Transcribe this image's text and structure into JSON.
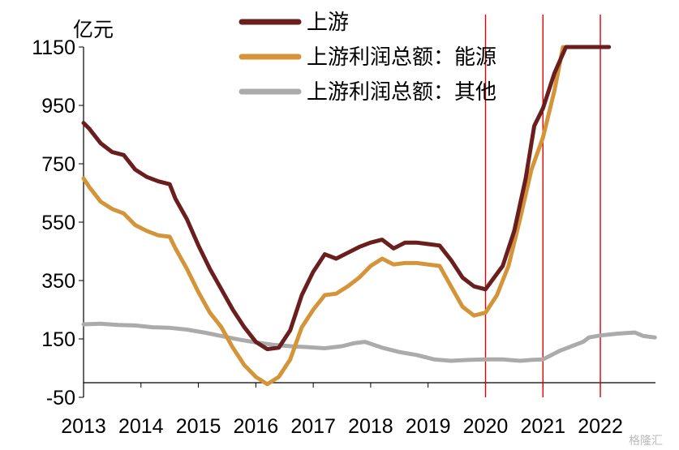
{
  "chart_data": {
    "type": "line",
    "ylabel": "亿元",
    "ylim": [
      -50,
      1150
    ],
    "yticks": [
      "1150",
      "950",
      "750",
      "550",
      "350",
      "150",
      "-50"
    ],
    "ytick_values": [
      1150,
      950,
      750,
      550,
      350,
      150,
      -50
    ],
    "xlim": [
      2013,
      2022.96
    ],
    "xticks": [
      "2013",
      "2014",
      "2015",
      "2016",
      "2017",
      "2018",
      "2019",
      "2020",
      "2021",
      "2022"
    ],
    "xtick_values": [
      2013,
      2014,
      2015,
      2016,
      2017,
      2018,
      2019,
      2020,
      2021,
      2022
    ],
    "legend": {
      "position": "top-center"
    },
    "grid": false,
    "series": [
      {
        "name": "上游",
        "color": "#6b1e1e",
        "x": [
          2013.0,
          2013.1,
          2013.3,
          2013.5,
          2013.7,
          2013.9,
          2014.1,
          2014.3,
          2014.5,
          2014.6,
          2014.8,
          2015.0,
          2015.2,
          2015.4,
          2015.6,
          2015.8,
          2016.0,
          2016.2,
          2016.4,
          2016.6,
          2016.8,
          2017.0,
          2017.2,
          2017.4,
          2017.6,
          2017.8,
          2018.0,
          2018.2,
          2018.4,
          2018.6,
          2018.8,
          2019.0,
          2019.2,
          2019.4,
          2019.6,
          2019.8,
          2020.0,
          2020.15,
          2020.3,
          2020.5,
          2020.7,
          2020.85,
          2021.0,
          2021.2,
          2021.4,
          2021.6,
          2021.8,
          2022.0,
          2022.1,
          2022.15
        ],
        "values": [
          890,
          870,
          820,
          790,
          780,
          730,
          705,
          690,
          680,
          630,
          560,
          470,
          390,
          320,
          250,
          190,
          140,
          115,
          120,
          180,
          300,
          380,
          440,
          425,
          445,
          465,
          480,
          490,
          460,
          480,
          480,
          475,
          470,
          420,
          360,
          330,
          320,
          360,
          400,
          520,
          700,
          880,
          940,
          1060,
          1150,
          1150,
          1150,
          1150,
          1150,
          1150
        ]
      },
      {
        "name": "上游利润总额：能源",
        "color": "#d4943a",
        "x": [
          2013.0,
          2013.1,
          2013.3,
          2013.5,
          2013.7,
          2013.9,
          2014.1,
          2014.3,
          2014.5,
          2014.6,
          2014.8,
          2015.0,
          2015.2,
          2015.4,
          2015.6,
          2015.8,
          2016.0,
          2016.2,
          2016.4,
          2016.6,
          2016.8,
          2017.0,
          2017.2,
          2017.4,
          2017.6,
          2017.8,
          2018.0,
          2018.2,
          2018.4,
          2018.6,
          2018.8,
          2019.0,
          2019.2,
          2019.4,
          2019.6,
          2019.8,
          2020.0,
          2020.2,
          2020.4,
          2020.6,
          2020.8,
          2021.0,
          2021.2,
          2021.35
        ],
        "values": [
          700,
          670,
          620,
          595,
          580,
          540,
          520,
          505,
          500,
          460,
          390,
          310,
          240,
          190,
          120,
          60,
          20,
          -5,
          20,
          80,
          190,
          250,
          300,
          305,
          330,
          360,
          400,
          425,
          405,
          410,
          410,
          405,
          400,
          330,
          260,
          230,
          240,
          300,
          400,
          560,
          730,
          840,
          1000,
          1150
        ]
      },
      {
        "name": "上游利润总额：其他",
        "color": "#ababab",
        "x": [
          2013.0,
          2013.3,
          2013.6,
          2013.9,
          2014.2,
          2014.5,
          2014.8,
          2015.1,
          2015.4,
          2015.7,
          2016.0,
          2016.3,
          2016.6,
          2016.9,
          2017.2,
          2017.5,
          2017.7,
          2017.9,
          2018.2,
          2018.5,
          2018.8,
          2019.1,
          2019.4,
          2019.7,
          2020.0,
          2020.3,
          2020.6,
          2020.8,
          2021.0,
          2021.15,
          2021.3,
          2021.5,
          2021.7,
          2021.8,
          2022.0,
          2022.15,
          2022.3,
          2022.45,
          2022.6,
          2022.75,
          2022.95
        ],
        "values": [
          200,
          202,
          198,
          196,
          190,
          188,
          182,
          172,
          160,
          148,
          138,
          130,
          125,
          122,
          118,
          125,
          135,
          140,
          120,
          105,
          95,
          80,
          75,
          78,
          80,
          80,
          75,
          78,
          80,
          95,
          110,
          125,
          140,
          155,
          162,
          165,
          168,
          170,
          172,
          160,
          155
        ]
      }
    ],
    "vertical_lines": [
      {
        "x": 2020.0,
        "color": "#e00000"
      },
      {
        "x": 2021.0,
        "color": "#e00000"
      },
      {
        "x": 2022.0,
        "color": "#e00000"
      }
    ]
  },
  "watermark": "格隆汇"
}
